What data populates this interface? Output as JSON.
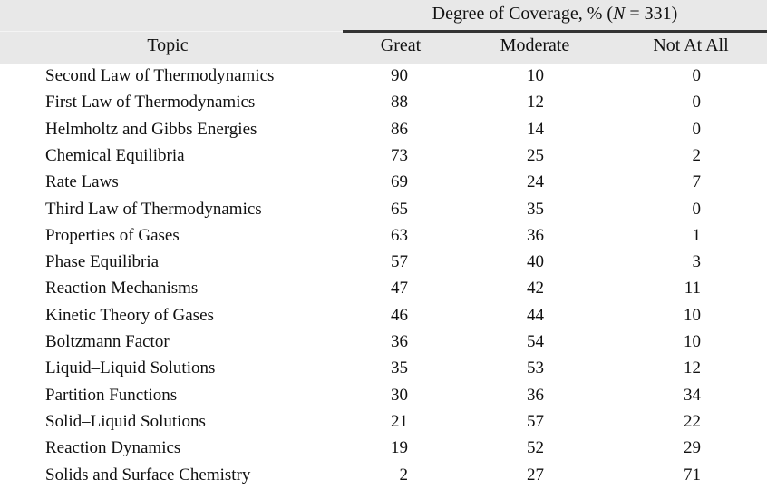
{
  "table": {
    "group_header": "Degree of Coverage, % (N = 331)",
    "group_header_parts": {
      "prefix": "Degree of Coverage, % (",
      "var": "N",
      "suffix": " = 331)"
    },
    "columns": [
      "Topic",
      "Great",
      "Moderate",
      "Not At All"
    ],
    "rows": [
      {
        "topic": "Second Law of Thermodynamics",
        "great": "90",
        "moderate": "10",
        "not_at_all": "0"
      },
      {
        "topic": "First Law of Thermodynamics",
        "great": "88",
        "moderate": "12",
        "not_at_all": "0"
      },
      {
        "topic": "Helmholtz and Gibbs Energies",
        "great": "86",
        "moderate": "14",
        "not_at_all": "0"
      },
      {
        "topic": "Chemical Equilibria",
        "great": "73",
        "moderate": "25",
        "not_at_all": "2"
      },
      {
        "topic": "Rate Laws",
        "great": "69",
        "moderate": "24",
        "not_at_all": "7"
      },
      {
        "topic": "Third Law of Thermodynamics",
        "great": "65",
        "moderate": "35",
        "not_at_all": "0"
      },
      {
        "topic": "Properties of Gases",
        "great": "63",
        "moderate": "36",
        "not_at_all": "1"
      },
      {
        "topic": "Phase Equilibria",
        "great": "57",
        "moderate": "40",
        "not_at_all": "3"
      },
      {
        "topic": "Reaction Mechanisms",
        "great": "47",
        "moderate": "42",
        "not_at_all": "11"
      },
      {
        "topic": "Kinetic Theory of Gases",
        "great": "46",
        "moderate": "44",
        "not_at_all": "10"
      },
      {
        "topic": "Boltzmann Factor",
        "great": "36",
        "moderate": "54",
        "not_at_all": "10"
      },
      {
        "topic": "Liquid–Liquid Solutions",
        "great": "35",
        "moderate": "53",
        "not_at_all": "12"
      },
      {
        "topic": "Partition Functions",
        "great": "30",
        "moderate": "36",
        "not_at_all": "34"
      },
      {
        "topic": "Solid–Liquid Solutions",
        "great": "21",
        "moderate": "57",
        "not_at_all": "22"
      },
      {
        "topic": "Reaction Dynamics",
        "great": "19",
        "moderate": "52",
        "not_at_all": "29"
      },
      {
        "topic": "Solids and Surface Chemistry",
        "great": "2",
        "moderate": "27",
        "not_at_all": "71"
      }
    ]
  },
  "colors": {
    "header_bg": "#e8e8e8",
    "rule": "#333333",
    "text": "#111111"
  }
}
